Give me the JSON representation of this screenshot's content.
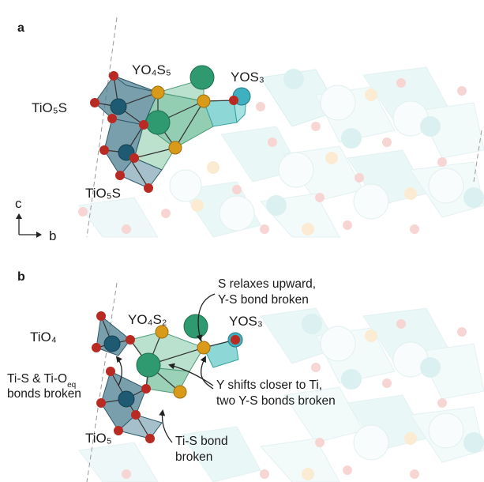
{
  "panels": [
    {
      "letter": "a",
      "labels": {
        "ti_top": "TiO₅S",
        "ti_bottom": "TiO₅S",
        "y_center": "YO₄S₅",
        "y_right": "YOS₃"
      },
      "axes": {
        "up": "c",
        "right": "b"
      }
    },
    {
      "letter": "b",
      "labels": {
        "ti_top": "TiO₄",
        "ti_bottom": "TiO₅",
        "y_center": "YO₄S₂",
        "y_right": "YOS₃"
      },
      "annotations": {
        "s_relax_line1": "S relaxes upward,",
        "s_relax_line2": "Y-S bond broken",
        "ti_s_line1": "Ti-S & Ti-O",
        "ti_s_sub": "eq",
        "ti_s_line2": "bonds broken",
        "y_shift_line1": "Y shifts closer to Ti,",
        "y_shift_line2": "two Y-S bonds broken",
        "ti_s_bond_line1": "Ti-S bond",
        "ti_s_bond_line2": "broken"
      }
    }
  ],
  "colors": {
    "ti_polyhedron": "#3f6f80",
    "ti_atom": "#1e5a72",
    "y_polyhedron": "#7fc3a4",
    "y_atom": "#2f9a70",
    "o_atom": "#b92a23",
    "s_atom": "#d89a18",
    "faded_cyan": "#cfeeee",
    "faded_atom": "#bfe4e4"
  }
}
